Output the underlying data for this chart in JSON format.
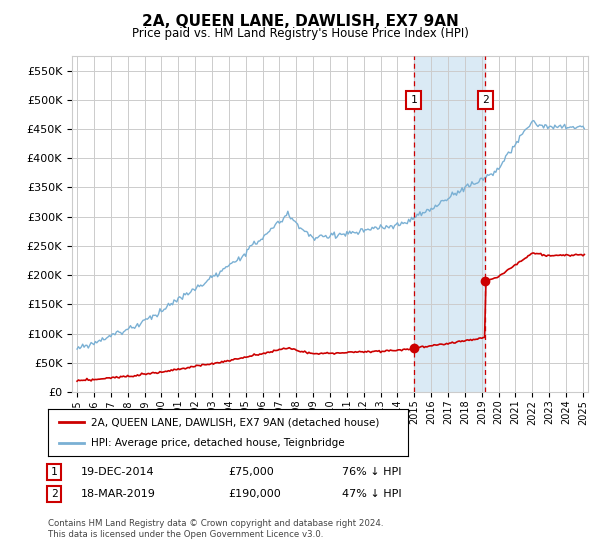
{
  "title": "2A, QUEEN LANE, DAWLISH, EX7 9AN",
  "subtitle": "Price paid vs. HM Land Registry's House Price Index (HPI)",
  "ylim": [
    0,
    575000
  ],
  "yticks": [
    0,
    50000,
    100000,
    150000,
    200000,
    250000,
    300000,
    350000,
    400000,
    450000,
    500000,
    550000
  ],
  "xlim_start": 1994.7,
  "xlim_end": 2025.3,
  "marker1_x": 2014.96,
  "marker1_y": 75000,
  "marker2_x": 2019.21,
  "marker2_y": 190000,
  "legend_label_red": "2A, QUEEN LANE, DAWLISH, EX7 9AN (detached house)",
  "legend_label_blue": "HPI: Average price, detached house, Teignbridge",
  "marker1_date": "19-DEC-2014",
  "marker1_price": "£75,000",
  "marker1_hpi": "76% ↓ HPI",
  "marker2_date": "18-MAR-2019",
  "marker2_price": "£190,000",
  "marker2_hpi": "47% ↓ HPI",
  "footer": "Contains HM Land Registry data © Crown copyright and database right 2024.\nThis data is licensed under the Open Government Licence v3.0.",
  "hpi_color": "#7ab0d4",
  "property_color": "#cc0000",
  "shade_color": "#daeaf5",
  "grid_color": "#cccccc",
  "background_color": "#ffffff"
}
